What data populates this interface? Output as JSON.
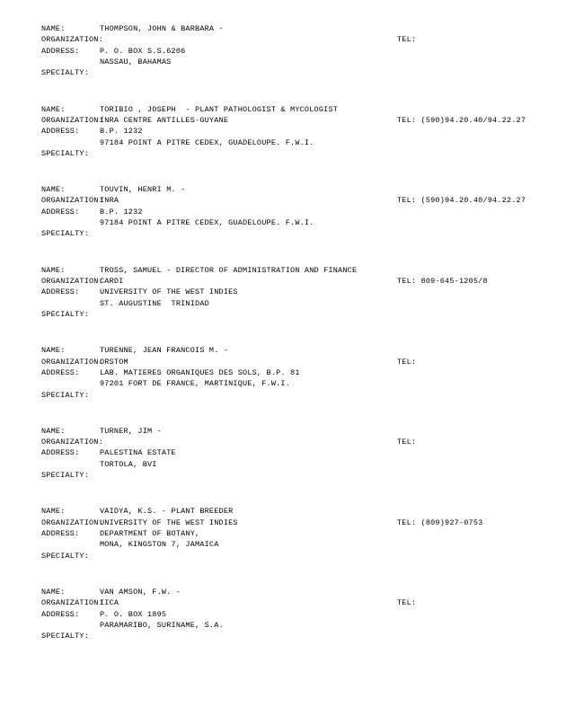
{
  "labels": {
    "name": "NAME:",
    "organization": "ORGANIZATION:",
    "address": "ADDRESS:",
    "specialty": "SPECIALTY:",
    "tel": "TEL:"
  },
  "entries": [
    {
      "name": "THOMPSON, JOHN & BARBARA -",
      "organization": "",
      "tel": "",
      "address1": "P. O. BOX S.S.6206",
      "address2": "NASSAU, BAHAMAS",
      "specialty": ""
    },
    {
      "name": "TORIBIO , JOSEPH  - PLANT PATHOLOGIST & MYCOLOGIST",
      "organization": "INRA CENTRE ANTILLES-GUYANE",
      "tel": "(590)94.20.40/94.22.27",
      "address1": "B.P. 1232",
      "address2": "97184 POINT A PITRE CEDEX, GUADELOUPE. F.W.I.",
      "specialty": ""
    },
    {
      "name": "TOUVIN, HENRI M. -",
      "organization": "INRA",
      "tel": "(590)94.20.40/94.22.27",
      "address1": "B.P. 1232",
      "address2": "97184 POINT A PITRE CEDEX, GUADELOUPE. F.W.I.",
      "specialty": ""
    },
    {
      "name": "TROSS, SAMUEL - DIRECTOR OF ADMINISTRATION AND FINANCE",
      "organization": "CARDI",
      "tel": "809-645-1205/8",
      "address1": "UNIVERSITY OF THE WEST INDIES",
      "address2": "ST. AUGUSTINE  TRINIDAD",
      "specialty": ""
    },
    {
      "name": "TURENNE, JEAN FRANCOIS M. -",
      "organization": "ORSTOM",
      "tel": "",
      "address1": "LAB. MATIERES ORGANIQUES DES SOLS, B.P. 81",
      "address2": "97201 FORT DE FRANCE, MARTINIQUE, F.W.I.",
      "specialty": ""
    },
    {
      "name": "TURNER, JIM -",
      "organization": "",
      "tel": "",
      "address1": "PALESTINA ESTATE",
      "address2": "TORTOLA, BVI",
      "specialty": ""
    },
    {
      "name": "VAIDYA, K.S. - PLANT BREEDER",
      "organization": "UNIVERSITY OF THE WEST INDIES",
      "tel": "(809)927-0753",
      "address1": "DEPARTMENT OF BOTANY,",
      "address2": "MONA, KINGSTON 7, JAMAICA",
      "specialty": ""
    },
    {
      "name": "VAN AMSON, F.W. -",
      "organization": "IICA",
      "tel": "",
      "address1": "P. O. BOX 1895",
      "address2": "PARAMARIBO, SURINAME, S.A.",
      "specialty": ""
    }
  ]
}
